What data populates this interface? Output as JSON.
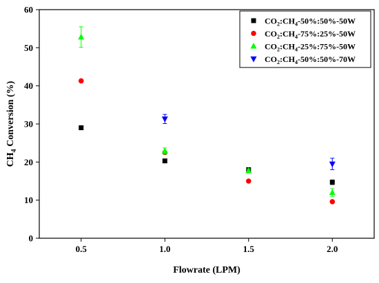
{
  "chart_data": {
    "type": "scatter",
    "title": "",
    "xlabel": "Flowrate (LPM)",
    "ylabel_parts": {
      "pre": "CH",
      "sub": "4",
      "post": " Conversion (%)"
    },
    "xlim": [
      0.25,
      2.25
    ],
    "ylim": [
      0,
      60
    ],
    "x_ticks": [
      0.5,
      1.0,
      1.5,
      2.0
    ],
    "x_tick_labels": [
      "0.5",
      "1.0",
      "1.5",
      "2.0"
    ],
    "y_ticks": [
      0,
      10,
      20,
      30,
      40,
      50,
      60
    ],
    "y_tick_labels": [
      "0",
      "10",
      "20",
      "30",
      "40",
      "50",
      "60"
    ],
    "grid": false,
    "legend_position": "top-right",
    "series": [
      {
        "label": {
          "a": "CO",
          "a_sub": "2",
          "b": ":CH",
          "b_sub": "4",
          "c": "-50%:50%-50W"
        },
        "marker": "square",
        "color": "#000000",
        "x": [
          0.5,
          1.0,
          1.5,
          2.0
        ],
        "y": [
          29.0,
          20.3,
          18.0,
          14.7
        ],
        "err": [
          0,
          0,
          0,
          0.6
        ]
      },
      {
        "label": {
          "a": "CO",
          "a_sub": "2",
          "b": ":CH",
          "b_sub": "4",
          "c": "-75%:25%-50W"
        },
        "marker": "circle",
        "color": "#ff0000",
        "x": [
          0.5,
          1.0,
          1.5,
          2.0
        ],
        "y": [
          41.3,
          22.5,
          15.0,
          9.6
        ],
        "err": [
          0,
          0,
          0,
          0
        ]
      },
      {
        "label": {
          "a": "CO",
          "a_sub": "2",
          "b": ":CH",
          "b_sub": "4",
          "c": "-25%:75%-50W"
        },
        "marker": "triangle-up",
        "color": "#00ff00",
        "x": [
          0.5,
          1.0,
          1.5,
          2.0
        ],
        "y": [
          52.8,
          22.9,
          17.7,
          12.0
        ],
        "err": [
          2.7,
          0.8,
          0.5,
          1.0
        ]
      },
      {
        "label": {
          "a": "CO",
          "a_sub": "2",
          "b": ":CH",
          "b_sub": "4",
          "c": "-50%:50%-70W"
        },
        "marker": "triangle-down",
        "color": "#0000ff",
        "x": [
          1.0,
          2.0
        ],
        "y": [
          31.3,
          19.5
        ],
        "err": [
          1.2,
          1.5
        ]
      }
    ]
  }
}
